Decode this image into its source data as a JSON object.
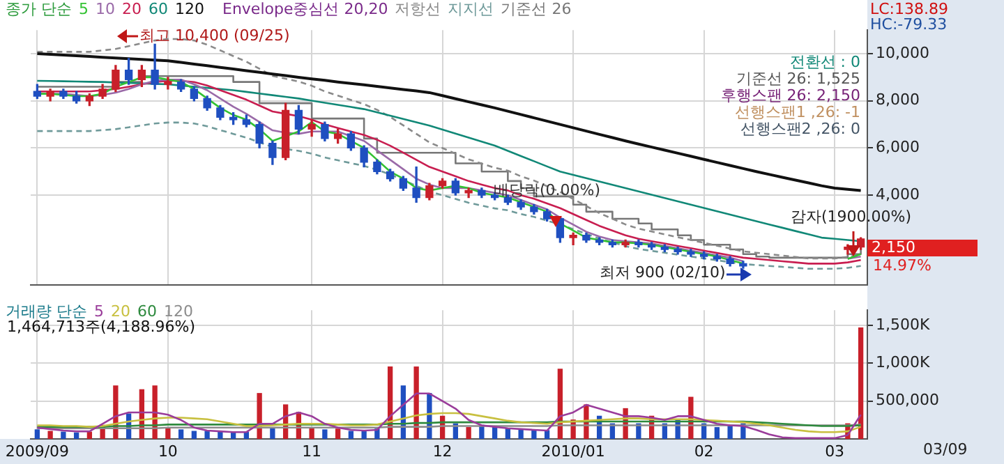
{
  "chart_data": [
    {
      "type": "candlestick",
      "legend": "top",
      "legend_title": "종가 단순",
      "grid": true,
      "tick_labels": "y",
      "marker": "none",
      "categories": [
        "2009/09",
        null,
        null,
        null,
        null,
        null,
        null,
        null,
        null,
        null,
        "10",
        null,
        null,
        null,
        null,
        null,
        null,
        null,
        null,
        null,
        null,
        "11",
        null,
        null,
        null,
        null,
        null,
        null,
        null,
        null,
        null,
        "12",
        null,
        null,
        null,
        null,
        null,
        null,
        null,
        null,
        null,
        "2010/01",
        null,
        null,
        null,
        null,
        null,
        null,
        null,
        null,
        null,
        "02",
        null,
        null,
        null,
        null,
        null,
        null,
        null,
        null,
        null,
        "03",
        null,
        null
      ],
      "ylim": [
        200,
        11000
      ],
      "yticks": [
        {
          "value": 4000,
          "label": "4,000"
        },
        {
          "value": 6000,
          "label": "6,000"
        },
        {
          "value": 8000,
          "label": "8,000"
        },
        {
          "value": 10000,
          "label": "10,000"
        }
      ],
      "ohlc": [
        [
          8400,
          8700,
          8100,
          8200
        ],
        [
          8200,
          8500,
          8000,
          8400
        ],
        [
          8400,
          8500,
          8100,
          8200
        ],
        [
          8200,
          8400,
          7900,
          8000
        ],
        [
          8000,
          8300,
          7800,
          8200
        ],
        [
          8200,
          8700,
          8100,
          8500
        ],
        [
          8500,
          9500,
          8400,
          9300
        ],
        [
          9300,
          9800,
          8700,
          8900
        ],
        [
          8900,
          9500,
          8600,
          9300
        ],
        [
          9300,
          10400,
          8500,
          8700
        ],
        [
          8700,
          9000,
          8500,
          8800
        ],
        [
          8800,
          8900,
          8400,
          8500
        ],
        [
          8500,
          8600,
          8000,
          8100
        ],
        [
          8100,
          8200,
          7600,
          7700
        ],
        [
          7700,
          7800,
          7200,
          7300
        ],
        [
          7300,
          7500,
          7000,
          7200
        ],
        [
          7200,
          7400,
          6900,
          7000
        ],
        [
          7000,
          7100,
          6000,
          6200
        ],
        [
          6200,
          6300,
          5300,
          5600
        ],
        [
          5600,
          7900,
          5500,
          7600
        ],
        [
          7600,
          7800,
          6600,
          6800
        ],
        [
          6800,
          7200,
          6500,
          7000
        ],
        [
          7000,
          7100,
          6300,
          6400
        ],
        [
          6400,
          6800,
          6200,
          6600
        ],
        [
          6600,
          6700,
          5900,
          6000
        ],
        [
          6000,
          6100,
          5200,
          5400
        ],
        [
          5400,
          5500,
          4900,
          5000
        ],
        [
          5000,
          5100,
          4600,
          4700
        ],
        [
          4700,
          4800,
          4200,
          4300
        ],
        [
          4300,
          5200,
          3700,
          3900
        ],
        [
          3900,
          4500,
          3800,
          4400
        ],
        [
          4400,
          4700,
          4300,
          4600
        ],
        [
          4600,
          4700,
          4000,
          4100
        ],
        [
          4100,
          4300,
          3900,
          4200
        ],
        [
          4200,
          4300,
          3900,
          4000
        ],
        [
          4000,
          4100,
          3800,
          3900
        ],
        [
          3900,
          4000,
          3600,
          3700
        ],
        [
          3700,
          3800,
          3400,
          3500
        ],
        [
          3500,
          3600,
          3200,
          3300
        ],
        [
          3300,
          3400,
          2900,
          3000
        ],
        [
          3000,
          3100,
          2000,
          2200
        ],
        [
          2200,
          2400,
          1900,
          2300
        ],
        [
          2300,
          2400,
          2000,
          2100
        ],
        [
          2100,
          2200,
          1900,
          2000
        ],
        [
          2000,
          2100,
          1800,
          1900
        ],
        [
          1900,
          2100,
          1800,
          2000
        ],
        [
          2000,
          2100,
          1800,
          1900
        ],
        [
          1900,
          2000,
          1700,
          1800
        ],
        [
          1800,
          1900,
          1600,
          1700
        ],
        [
          1700,
          1800,
          1500,
          1600
        ],
        [
          1600,
          1700,
          1400,
          1500
        ],
        [
          1500,
          1600,
          1300,
          1400
        ],
        [
          1400,
          1500,
          1200,
          1300
        ],
        [
          1300,
          1400,
          1000,
          1100
        ],
        [
          1100,
          1200,
          900,
          1000
        ],
        null,
        null,
        null,
        null,
        null,
        null,
        null,
        [
          1700,
          1900,
          1500,
          1800
        ],
        [
          1800,
          2200,
          1700,
          2150
        ]
      ],
      "colors": [
        "#1f4fc0",
        "#c8202a",
        "#1f4fc0",
        "#1f4fc0",
        "#c8202a",
        "#c8202a",
        "#c8202a",
        "#1f4fc0",
        "#c8202a",
        "#1f4fc0",
        "#c8202a",
        "#1f4fc0",
        "#1f4fc0",
        "#1f4fc0",
        "#1f4fc0",
        "#1f4fc0",
        "#1f4fc0",
        "#1f4fc0",
        "#1f4fc0",
        "#c8202a",
        "#1f4fc0",
        "#c8202a",
        "#1f4fc0",
        "#c8202a",
        "#1f4fc0",
        "#1f4fc0",
        "#1f4fc0",
        "#1f4fc0",
        "#1f4fc0",
        "#1f4fc0",
        "#c8202a",
        "#c8202a",
        "#1f4fc0",
        "#c8202a",
        "#1f4fc0",
        "#1f4fc0",
        "#1f4fc0",
        "#1f4fc0",
        "#1f4fc0",
        "#1f4fc0",
        "#1f4fc0",
        "#c8202a",
        "#1f4fc0",
        "#1f4fc0",
        "#1f4fc0",
        "#c8202a",
        "#1f4fc0",
        "#1f4fc0",
        "#1f4fc0",
        "#1f4fc0",
        "#1f4fc0",
        "#1f4fc0",
        "#1f4fc0",
        "#1f4fc0",
        "#1f4fc0",
        null,
        null,
        null,
        null,
        null,
        null,
        null,
        "#c8202a",
        "#c8202a"
      ],
      "series": [
        {
          "name": "5",
          "type": "line",
          "color": "#33c233",
          "values": [
            8300,
            8300,
            8250,
            8200,
            8200,
            8300,
            8600,
            8800,
            9000,
            9000,
            8900,
            8800,
            8500,
            8100,
            7700,
            7400,
            7200,
            6800,
            6300,
            6500,
            6700,
            7100,
            6700,
            6600,
            6300,
            6000,
            5500,
            5000,
            4700,
            4300,
            4200,
            4300,
            4400,
            4300,
            4100,
            4000,
            3900,
            3700,
            3500,
            3300,
            2800,
            2500,
            2200,
            2100,
            2000,
            2000,
            1950,
            1900,
            1800,
            1700,
            1600,
            1500,
            1400,
            1250,
            1100,
            null,
            null,
            null,
            null,
            null,
            null,
            null,
            1300,
            1500
          ]
        },
        {
          "name": "10",
          "type": "line",
          "color": "#9a6aa8",
          "values": [
            8300,
            8300,
            8300,
            8250,
            8200,
            8250,
            8350,
            8500,
            8700,
            8850,
            8900,
            8900,
            8700,
            8450,
            8100,
            7750,
            7450,
            7100,
            6750,
            6650,
            6600,
            6700,
            6700,
            6700,
            6500,
            6300,
            5900,
            5500,
            5100,
            4700,
            4450,
            4300,
            4300,
            4300,
            4200,
            4100,
            4000,
            3800,
            3600,
            3400,
            3050,
            2750,
            2450,
            2250,
            2100,
            2050,
            2000,
            1950,
            1850,
            1750,
            1650,
            1550,
            1450,
            1350,
            1200,
            null,
            null,
            null,
            null,
            null,
            null,
            null,
            1300,
            1400
          ]
        },
        {
          "name": "20",
          "type": "line",
          "color": "#c81e50",
          "values": [
            8400,
            8400,
            8400,
            8400,
            8400,
            8450,
            8500,
            8600,
            8700,
            8800,
            8850,
            8850,
            8800,
            8650,
            8450,
            8250,
            8050,
            7800,
            7550,
            7450,
            7350,
            7200,
            7000,
            6850,
            6700,
            6550,
            6350,
            6100,
            5800,
            5500,
            5200,
            5000,
            4800,
            4600,
            4450,
            4300,
            4200,
            4000,
            3850,
            3650,
            3450,
            3200,
            2950,
            2700,
            2500,
            2300,
            2150,
            2050,
            1950,
            1850,
            1750,
            1650,
            1550,
            1450,
            1350,
            1300,
            1250,
            1200,
            1150,
            1100,
            1100,
            1100,
            1150,
            1250
          ]
        },
        {
          "name": "60",
          "type": "line",
          "color": "#118877",
          "values": [
            8850,
            8840,
            8830,
            8820,
            8810,
            8800,
            8780,
            8760,
            8740,
            8720,
            8700,
            8650,
            8600,
            8550,
            8500,
            8450,
            8380,
            8310,
            8240,
            8170,
            8100,
            8010,
            7920,
            7830,
            7740,
            7650,
            7510,
            7370,
            7230,
            7090,
            6950,
            6780,
            6610,
            6440,
            6270,
            6100,
            5880,
            5660,
            5440,
            5220,
            5000,
            4860,
            4720,
            4580,
            4440,
            4300,
            4160,
            4020,
            3880,
            3740,
            3600,
            3460,
            3320,
            3180,
            3040,
            2900,
            2760,
            2620,
            2480,
            2340,
            2200,
            2150,
            2100,
            2050
          ]
        },
        {
          "name": "120",
          "type": "line",
          "color": "#111111",
          "values": [
            10000,
            9970,
            9940,
            9910,
            9880,
            9850,
            9820,
            9790,
            9760,
            9730,
            9700,
            9630,
            9560,
            9490,
            9420,
            9350,
            9280,
            9210,
            9140,
            9070,
            9000,
            8930,
            8870,
            8800,
            8740,
            8680,
            8610,
            8550,
            8480,
            8420,
            8350,
            8220,
            8090,
            7960,
            7830,
            7700,
            7560,
            7420,
            7280,
            7140,
            7000,
            6860,
            6720,
            6580,
            6440,
            6300,
            6170,
            6040,
            5910,
            5780,
            5650,
            5520,
            5390,
            5260,
            5130,
            5000,
            4880,
            4760,
            4640,
            4520,
            4400,
            4300,
            4250,
            4200
          ]
        },
        {
          "name": "저항선",
          "type": "line",
          "color": "#8a8a8a",
          "line_style": "dashed",
          "values": [
            10080,
            10080,
            10080,
            10080,
            10080,
            10140,
            10200,
            10320,
            10440,
            10560,
            10620,
            10620,
            10560,
            10380,
            10140,
            9900,
            9660,
            9360,
            9060,
            8940,
            8820,
            8640,
            8400,
            8220,
            8040,
            7860,
            7620,
            7320,
            6960,
            6600,
            6240,
            6000,
            5760,
            5520,
            5340,
            5160,
            5040,
            4800,
            4620,
            4380,
            4140,
            3840,
            3540,
            3240,
            3000,
            2760,
            2580,
            2460,
            2340,
            2220,
            2100,
            1980,
            1860,
            1740,
            1620,
            1560,
            1500,
            1440,
            1380,
            1320,
            1320,
            1320,
            1380,
            1500
          ]
        },
        {
          "name": "지지선",
          "type": "line",
          "color": "#6f9a9a",
          "line_style": "dashed",
          "values": [
            6720,
            6720,
            6720,
            6720,
            6720,
            6760,
            6800,
            6880,
            6960,
            7040,
            7080,
            7080,
            7040,
            6920,
            6760,
            6600,
            6440,
            6240,
            6040,
            5960,
            5880,
            5760,
            5600,
            5480,
            5360,
            5240,
            5080,
            4880,
            4640,
            4400,
            4160,
            4000,
            3840,
            3680,
            3560,
            3440,
            3360,
            3200,
            3080,
            2920,
            2760,
            2560,
            2360,
            2160,
            2000,
            1840,
            1720,
            1640,
            1560,
            1480,
            1400,
            1320,
            1240,
            1160,
            1080,
            1040,
            1000,
            960,
            920,
            880,
            880,
            880,
            920,
            1000
          ]
        },
        {
          "name": "기준선 26",
          "type": "step",
          "color": "#777777",
          "values": [
            8600,
            8600,
            8600,
            8600,
            8600,
            8600,
            8800,
            8800,
            9050,
            9050,
            9050,
            9050,
            9050,
            9050,
            9050,
            8800,
            8800,
            7900,
            7900,
            7900,
            7900,
            7250,
            7250,
            7250,
            7250,
            6400,
            5800,
            5800,
            5800,
            5800,
            5800,
            5800,
            5350,
            5350,
            5000,
            5000,
            4600,
            4300,
            3950,
            3950,
            3950,
            3600,
            3300,
            3300,
            3000,
            3000,
            2800,
            2550,
            2550,
            2300,
            2100,
            1900,
            1900,
            1700,
            1500,
            1400,
            1350,
            1350,
            1350,
            1350,
            1350,
            1350,
            1500,
            1750
          ]
        }
      ],
      "annotations": [
        "Envelope중심선 20,20",
        "최고 10,400 (09/25)",
        "배당락(0.00%)",
        "최저 900 (02/10)",
        "감자(1900.00%)",
        "전환선 : 0",
        "기준선 26: 1,525",
        "후행스팬 26: 2,150",
        "선행스팬1 ,26: -1",
        "선행스팬2 ,26: 0",
        "LC:138.89",
        "HC:-79.33",
        "2,150",
        "14.97%"
      ]
    },
    {
      "type": "bar",
      "legend": "top left",
      "legend_title": "거래량 단순",
      "grid": true,
      "marker": "none",
      "categories": [
        "2009/09",
        null,
        null,
        null,
        null,
        null,
        null,
        null,
        null,
        null,
        "10",
        null,
        null,
        null,
        null,
        null,
        null,
        null,
        null,
        null,
        null,
        "11",
        null,
        null,
        null,
        null,
        null,
        null,
        null,
        null,
        null,
        "12",
        null,
        null,
        null,
        null,
        null,
        null,
        null,
        null,
        null,
        "2010/01",
        null,
        null,
        null,
        null,
        null,
        null,
        null,
        null,
        null,
        "02",
        null,
        null,
        null,
        null,
        null,
        null,
        null,
        null,
        null,
        "03",
        null,
        null
      ],
      "ylim": [
        0,
        1700000
      ],
      "yticks": [
        {
          "value": 500000,
          "label": "500,000"
        },
        {
          "value": 1000000,
          "label": "1,000K"
        },
        {
          "value": 1500000,
          "label": "1,500K"
        }
      ],
      "values": [
        120000,
        100000,
        90000,
        80000,
        90000,
        180000,
        700000,
        330000,
        650000,
        700000,
        150000,
        120000,
        100000,
        100000,
        90000,
        80000,
        90000,
        600000,
        150000,
        450000,
        350000,
        150000,
        120000,
        130000,
        100000,
        110000,
        130000,
        950000,
        700000,
        950000,
        600000,
        300000,
        200000,
        150000,
        180000,
        150000,
        140000,
        130000,
        120000,
        110000,
        920000,
        250000,
        450000,
        300000,
        200000,
        400000,
        200000,
        300000,
        200000,
        250000,
        550000,
        200000,
        150000,
        180000,
        200000,
        null,
        null,
        null,
        null,
        null,
        null,
        null,
        200000,
        1464713
      ],
      "colors": [
        "#1f4fc0",
        "#c8202a",
        "#1f4fc0",
        "#1f4fc0",
        "#c8202a",
        "#c8202a",
        "#c8202a",
        "#1f4fc0",
        "#c8202a",
        "#c8202a",
        "#c8202a",
        "#1f4fc0",
        "#1f4fc0",
        "#1f4fc0",
        "#1f4fc0",
        "#1f4fc0",
        "#1f4fc0",
        "#c8202a",
        "#1f4fc0",
        "#c8202a",
        "#c8202a",
        "#c8202a",
        "#1f4fc0",
        "#c8202a",
        "#1f4fc0",
        "#1f4fc0",
        "#1f4fc0",
        "#c8202a",
        "#1f4fc0",
        "#c8202a",
        "#1f4fc0",
        "#c8202a",
        "#1f4fc0",
        "#c8202a",
        "#1f4fc0",
        "#1f4fc0",
        "#1f4fc0",
        "#1f4fc0",
        "#1f4fc0",
        "#1f4fc0",
        "#c8202a",
        "#c8202a",
        "#c8202a",
        "#1f4fc0",
        "#1f4fc0",
        "#c8202a",
        "#1f4fc0",
        "#c8202a",
        "#1f4fc0",
        "#1f4fc0",
        "#c8202a",
        "#1f4fc0",
        "#1f4fc0",
        "#1f4fc0",
        "#1f4fc0",
        null,
        null,
        null,
        null,
        null,
        null,
        null,
        "#c8202a",
        "#c8202a"
      ],
      "series": [
        {
          "name": "5",
          "type": "line",
          "color": "#9a3c9a",
          "values": [
            150000,
            130000,
            110000,
            100000,
            100000,
            200000,
            300000,
            350000,
            350000,
            350000,
            320000,
            250000,
            150000,
            110000,
            100000,
            90000,
            90000,
            200000,
            200000,
            300000,
            350000,
            300000,
            200000,
            150000,
            120000,
            110000,
            120000,
            300000,
            450000,
            600000,
            600000,
            500000,
            400000,
            250000,
            180000,
            160000,
            140000,
            130000,
            120000,
            110000,
            300000,
            350000,
            450000,
            400000,
            350000,
            300000,
            300000,
            280000,
            250000,
            300000,
            300000,
            250000,
            200000,
            180000,
            170000,
            120000,
            60000,
            20000,
            10000,
            10000,
            10000,
            10000,
            50000,
            320000
          ]
        },
        {
          "name": "20",
          "type": "line",
          "color": "#c8c040",
          "values": [
            180000,
            180000,
            170000,
            170000,
            160000,
            170000,
            200000,
            230000,
            250000,
            270000,
            280000,
            280000,
            270000,
            260000,
            230000,
            200000,
            170000,
            170000,
            180000,
            190000,
            200000,
            200000,
            200000,
            190000,
            180000,
            180000,
            190000,
            230000,
            270000,
            310000,
            330000,
            340000,
            340000,
            330000,
            300000,
            270000,
            240000,
            220000,
            210000,
            200000,
            220000,
            230000,
            240000,
            250000,
            260000,
            270000,
            270000,
            260000,
            260000,
            260000,
            260000,
            250000,
            240000,
            230000,
            220000,
            200000,
            180000,
            150000,
            120000,
            100000,
            90000,
            90000,
            100000,
            160000
          ]
        },
        {
          "name": "60",
          "type": "line",
          "color": "#2e8a3e",
          "values": [
            160000,
            160000,
            160000,
            160000,
            160000,
            160000,
            170000,
            170000,
            180000,
            180000,
            190000,
            190000,
            190000,
            190000,
            190000,
            190000,
            190000,
            190000,
            190000,
            190000,
            190000,
            190000,
            190000,
            190000,
            190000,
            190000,
            190000,
            200000,
            200000,
            210000,
            210000,
            220000,
            220000,
            220000,
            220000,
            220000,
            220000,
            220000,
            220000,
            220000,
            230000,
            230000,
            230000,
            230000,
            230000,
            230000,
            230000,
            230000,
            230000,
            230000,
            230000,
            230000,
            230000,
            230000,
            230000,
            220000,
            210000,
            200000,
            190000,
            180000,
            170000,
            170000,
            170000,
            180000
          ]
        },
        {
          "name": "120",
          "type": "line",
          "color": "#8c8c8c",
          "values": [
            140000,
            140000,
            140000,
            140000,
            140000,
            140000,
            140000,
            140000,
            140000,
            140000,
            150000,
            150000,
            150000,
            150000,
            150000,
            150000,
            150000,
            150000,
            150000,
            150000,
            150000,
            150000,
            150000,
            150000,
            150000,
            150000,
            150000,
            160000,
            160000,
            160000,
            160000,
            170000,
            170000,
            170000,
            170000,
            170000,
            170000,
            170000,
            170000,
            170000,
            180000,
            180000,
            180000,
            180000,
            180000,
            180000,
            180000,
            180000,
            180000,
            180000,
            180000,
            180000,
            180000,
            180000,
            180000,
            180000,
            180000,
            180000,
            180000,
            180000,
            180000,
            180000,
            180000,
            190000
          ]
        }
      ],
      "annotations": [
        "1,464,713주(4,188.96%)",
        "03/09"
      ]
    }
  ]
}
